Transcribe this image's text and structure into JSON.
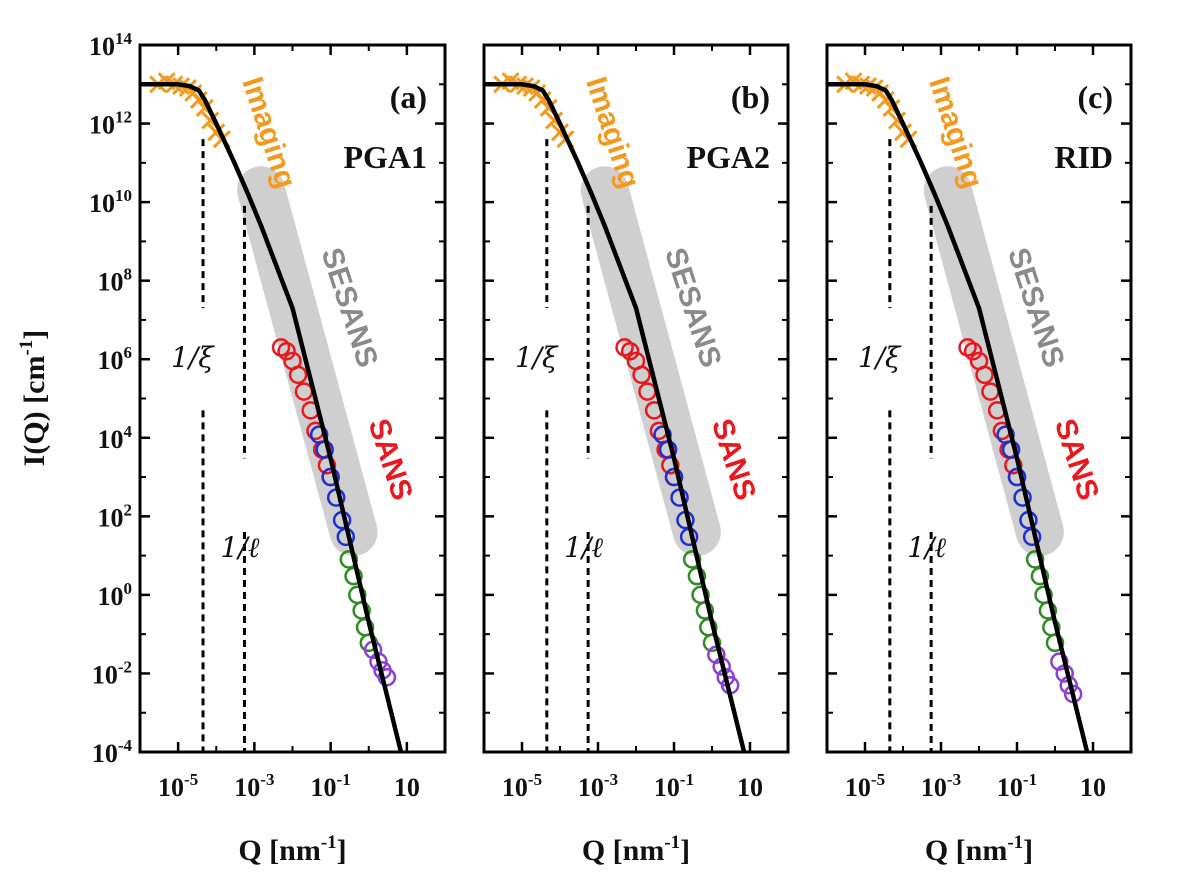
{
  "chart_data": {
    "type": "scatter",
    "x_scale": "log",
    "y_scale": "log",
    "xlim": [
      1e-06,
      100
    ],
    "ylim": [
      0.0001,
      100000000000000.0
    ],
    "x_ticks": [
      {
        "value": 1e-05,
        "base": "10",
        "exp": "-5"
      },
      {
        "value": 0.001,
        "base": "10",
        "exp": "-3"
      },
      {
        "value": 0.1,
        "base": "10",
        "exp": "-1"
      },
      {
        "value": 10,
        "base": "10",
        "exp": ""
      }
    ],
    "y_ticks": [
      {
        "value": 100000000000000.0,
        "base": "10",
        "exp": "14"
      },
      {
        "value": 1000000000000.0,
        "base": "10",
        "exp": "12"
      },
      {
        "value": 10000000000.0,
        "base": "10",
        "exp": "10"
      },
      {
        "value": 100000000.0,
        "base": "10",
        "exp": "8"
      },
      {
        "value": 1000000.0,
        "base": "10",
        "exp": "6"
      },
      {
        "value": 10000.0,
        "base": "10",
        "exp": "4"
      },
      {
        "value": 100.0,
        "base": "10",
        "exp": "2"
      },
      {
        "value": 1,
        "base": "10",
        "exp": "0"
      },
      {
        "value": 0.01,
        "base": "10",
        "exp": "-2"
      },
      {
        "value": 0.0001,
        "base": "10",
        "exp": "-4"
      }
    ],
    "ylabel": {
      "main": "I(Q) [cm",
      "sup": "-1",
      "end": "]"
    },
    "xlabel": {
      "main": "Q [nm",
      "sup": "-1",
      "end": "]"
    },
    "region_labels": {
      "imaging": "Imaging",
      "sesans": "SESANS",
      "sans": "SANS"
    },
    "colors": {
      "imaging": "#f39a1e",
      "sesans_band": "#cfcfcf",
      "sesans_label": "#8a8a8a",
      "sans_red": "#e8181e",
      "blue": "#1f2fd0",
      "green": "#2f8a24",
      "purple": "#8a3fd6",
      "fit": "#000000"
    },
    "panels": [
      {
        "label": "(a)",
        "sample": "PGA1",
        "marker_xi": {
          "label": "1/ξ",
          "q": 4.5e-05
        },
        "marker_l": {
          "label": "1/ℓ",
          "q": 0.00055
        },
        "fit_curve": [
          [
            1e-06,
            10000000000000.0
          ],
          [
            1e-05,
            10000000000000.0
          ],
          [
            2e-05,
            9000000000000.0
          ],
          [
            3.5e-05,
            7000000000000.0
          ],
          [
            5e-05,
            4000000000000.0
          ],
          [
            0.0001,
            1000000000000.0
          ],
          [
            0.0003,
            100000000000.0
          ],
          [
            0.0007,
            15000000000.0
          ],
          [
            0.0015,
            2500000000.0
          ],
          [
            0.01,
            20000000.0
          ],
          [
            0.1,
            3000.0
          ],
          [
            1,
            0.2
          ],
          [
            7,
            0.0001
          ]
        ],
        "series": [
          {
            "name": "Imaging",
            "marker": "x",
            "color_key": "imaging",
            "x": [
              3e-06,
              5e-06,
              8e-06,
              1.2e-05,
              1.8e-05,
              2.5e-05,
              3.5e-05,
              5e-05,
              7e-05,
              0.0001,
              0.00014
            ],
            "y": [
              10000000000000.0,
              12000000000000.0,
              10000000000000.0,
              9000000000000.0,
              8000000000000.0,
              6000000000000.0,
              4000000000000.0,
              2500000000000.0,
              1200000000000.0,
              600000000000.0,
              400000000000.0
            ]
          },
          {
            "name": "SESANS",
            "marker": "o",
            "color_key": "sans_red",
            "x": [
              0.005,
              0.007,
              0.01,
              0.014,
              0.02,
              0.03,
              0.04,
              0.06,
              0.08,
              0.1
            ],
            "y": [
              2000000.0,
              1600000.0,
              900000.0,
              400000.0,
              150000.0,
              50000.0,
              15000.0,
              5000.0,
              2000.0,
              1000.0
            ]
          },
          {
            "name": "SANS low-Q",
            "marker": "o",
            "color_key": "blue",
            "x": [
              0.05,
              0.07,
              0.1,
              0.14,
              0.2,
              0.25
            ],
            "y": [
              12000.0,
              5000.0,
              1000.0,
              300,
              80,
              30
            ]
          },
          {
            "name": "SANS mid-Q",
            "marker": "o",
            "color_key": "green",
            "x": [
              0.3,
              0.4,
              0.5,
              0.65,
              0.8,
              1.0
            ],
            "y": [
              8,
              3,
              1,
              0.4,
              0.15,
              0.06
            ]
          },
          {
            "name": "SANS high-Q",
            "marker": "o",
            "color_key": "purple",
            "x": [
              1.3,
              1.8,
              2.3,
              3.0
            ],
            "y": [
              0.04,
              0.02,
              0.012,
              0.008
            ]
          }
        ]
      },
      {
        "label": "(b)",
        "sample": "PGA2",
        "marker_xi": {
          "label": "1/ξ",
          "q": 4.5e-05
        },
        "marker_l": {
          "label": "1/ℓ",
          "q": 0.00055
        },
        "fit_curve": [
          [
            1e-06,
            10000000000000.0
          ],
          [
            1e-05,
            10000000000000.0
          ],
          [
            2e-05,
            9000000000000.0
          ],
          [
            3.5e-05,
            7000000000000.0
          ],
          [
            5e-05,
            4000000000000.0
          ],
          [
            0.0001,
            1000000000000.0
          ],
          [
            0.0003,
            100000000000.0
          ],
          [
            0.0007,
            15000000000.0
          ],
          [
            0.0015,
            2500000000.0
          ],
          [
            0.01,
            20000000.0
          ],
          [
            0.1,
            3000.0
          ],
          [
            1,
            0.2
          ],
          [
            7,
            0.0001
          ]
        ],
        "series": [
          {
            "name": "Imaging",
            "marker": "x",
            "color_key": "imaging",
            "x": [
              3e-06,
              5e-06,
              8e-06,
              1.2e-05,
              1.8e-05,
              2.5e-05,
              3.5e-05,
              5e-05,
              7e-05,
              0.0001,
              0.00014
            ],
            "y": [
              10000000000000.0,
              12000000000000.0,
              10000000000000.0,
              9000000000000.0,
              8000000000000.0,
              6000000000000.0,
              4000000000000.0,
              2500000000000.0,
              1200000000000.0,
              600000000000.0,
              400000000000.0
            ]
          },
          {
            "name": "SESANS",
            "marker": "o",
            "color_key": "sans_red",
            "x": [
              0.005,
              0.007,
              0.01,
              0.014,
              0.02,
              0.03,
              0.04,
              0.06,
              0.08,
              0.1
            ],
            "y": [
              2000000.0,
              1600000.0,
              900000.0,
              400000.0,
              150000.0,
              50000.0,
              15000.0,
              5000.0,
              2000.0,
              1000.0
            ]
          },
          {
            "name": "SANS low-Q",
            "marker": "o",
            "color_key": "blue",
            "x": [
              0.05,
              0.07,
              0.1,
              0.14,
              0.2,
              0.25
            ],
            "y": [
              12000.0,
              5000.0,
              1000.0,
              300,
              80,
              30
            ]
          },
          {
            "name": "SANS mid-Q",
            "marker": "o",
            "color_key": "green",
            "x": [
              0.3,
              0.4,
              0.5,
              0.65,
              0.8,
              1.0
            ],
            "y": [
              8,
              3,
              1,
              0.4,
              0.15,
              0.06
            ]
          },
          {
            "name": "SANS high-Q",
            "marker": "o",
            "color_key": "purple",
            "x": [
              1.3,
              1.8,
              2.3,
              3.0
            ],
            "y": [
              0.03,
              0.015,
              0.008,
              0.005
            ]
          }
        ]
      },
      {
        "label": "(c)",
        "sample": "RID",
        "marker_xi": {
          "label": "1/ξ",
          "q": 4.5e-05
        },
        "marker_l": {
          "label": "1/ℓ",
          "q": 0.00055
        },
        "fit_curve": [
          [
            1e-06,
            10000000000000.0
          ],
          [
            1e-05,
            10000000000000.0
          ],
          [
            2e-05,
            9000000000000.0
          ],
          [
            3.5e-05,
            7000000000000.0
          ],
          [
            5e-05,
            4000000000000.0
          ],
          [
            0.0001,
            1000000000000.0
          ],
          [
            0.0003,
            100000000000.0
          ],
          [
            0.0007,
            15000000000.0
          ],
          [
            0.0015,
            2500000000.0
          ],
          [
            0.01,
            20000000.0
          ],
          [
            0.1,
            3000.0
          ],
          [
            1,
            0.2
          ],
          [
            7,
            0.0001
          ]
        ],
        "series": [
          {
            "name": "Imaging",
            "marker": "x",
            "color_key": "imaging",
            "x": [
              3e-06,
              5e-06,
              8e-06,
              1.2e-05,
              1.8e-05,
              2.5e-05,
              3.5e-05,
              5e-05,
              7e-05,
              0.0001,
              0.00014
            ],
            "y": [
              10000000000000.0,
              12000000000000.0,
              10000000000000.0,
              9000000000000.0,
              8000000000000.0,
              6000000000000.0,
              4000000000000.0,
              2500000000000.0,
              1200000000000.0,
              600000000000.0,
              400000000000.0
            ]
          },
          {
            "name": "SESANS",
            "marker": "o",
            "color_key": "sans_red",
            "x": [
              0.005,
              0.007,
              0.01,
              0.014,
              0.02,
              0.03,
              0.04,
              0.06,
              0.08,
              0.1
            ],
            "y": [
              2000000.0,
              1600000.0,
              900000.0,
              400000.0,
              150000.0,
              50000.0,
              15000.0,
              5000.0,
              2000.0,
              1000.0
            ]
          },
          {
            "name": "SANS low-Q",
            "marker": "o",
            "color_key": "blue",
            "x": [
              0.05,
              0.07,
              0.1,
              0.14,
              0.2,
              0.25
            ],
            "y": [
              12000.0,
              5000.0,
              1000.0,
              300,
              80,
              30
            ]
          },
          {
            "name": "SANS mid-Q",
            "marker": "o",
            "color_key": "green",
            "x": [
              0.3,
              0.4,
              0.5,
              0.65,
              0.8,
              1.0
            ],
            "y": [
              8,
              3,
              1,
              0.4,
              0.15,
              0.06
            ]
          },
          {
            "name": "SANS high-Q",
            "marker": "o",
            "color_key": "purple",
            "x": [
              1.3,
              1.8,
              2.3,
              3.0
            ],
            "y": [
              0.02,
              0.01,
              0.005,
              0.003
            ]
          }
        ]
      }
    ]
  }
}
